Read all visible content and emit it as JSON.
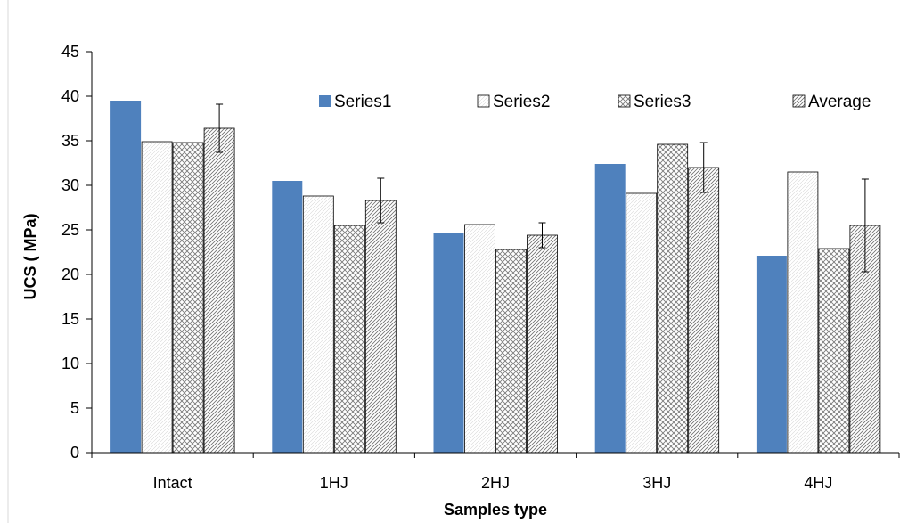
{
  "chart_data": {
    "type": "bar",
    "title": "",
    "xlabel": "Samples type",
    "ylabel": "UCS ( MPa)",
    "ylim": [
      0,
      45
    ],
    "yticks": [
      0,
      5,
      10,
      15,
      20,
      25,
      30,
      35,
      40,
      45
    ],
    "grid": false,
    "legend_position": "top-right",
    "categories": [
      "Intact",
      "1HJ",
      "2HJ",
      "3HJ",
      "4HJ"
    ],
    "series": [
      {
        "name": "Series1",
        "values": [
          39.5,
          30.5,
          24.7,
          32.4,
          22.1
        ],
        "fill": "solid",
        "color": "#4f81bd"
      },
      {
        "name": "Series2",
        "values": [
          34.9,
          28.8,
          25.6,
          29.1,
          31.5
        ],
        "fill": "white",
        "color": "#ffffff"
      },
      {
        "name": "Series3",
        "values": [
          34.8,
          25.5,
          22.8,
          34.6,
          22.9
        ],
        "fill": "crosshatch",
        "color": "#808080"
      },
      {
        "name": "Average",
        "values": [
          36.4,
          28.3,
          24.4,
          32.0,
          25.5
        ],
        "fill": "diagonal",
        "color": "#808080",
        "error": [
          2.7,
          2.5,
          1.4,
          2.8,
          5.2
        ]
      }
    ]
  }
}
